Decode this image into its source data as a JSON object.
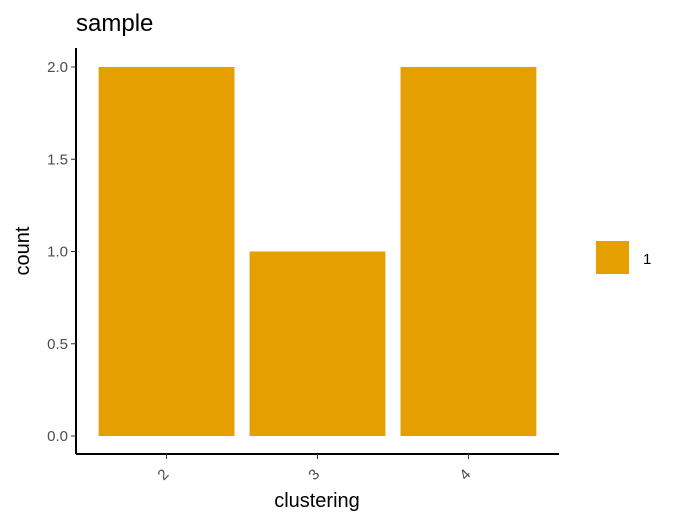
{
  "chart_data": {
    "type": "bar",
    "title": "sample",
    "xlabel": "clustering",
    "ylabel": "count",
    "categories": [
      "2",
      "3",
      "4"
    ],
    "series": [
      {
        "name": "1",
        "values": [
          2,
          1,
          2
        ],
        "color": "#E69F00"
      }
    ],
    "y_ticks": [
      "0.0",
      "0.5",
      "1.0",
      "1.5",
      "2.0"
    ],
    "ylim": [
      0,
      2
    ],
    "x_tick_rotation": "rotated -45 degrees",
    "grid": false,
    "legend": {
      "placement": "right",
      "entries": [
        "1"
      ]
    }
  }
}
